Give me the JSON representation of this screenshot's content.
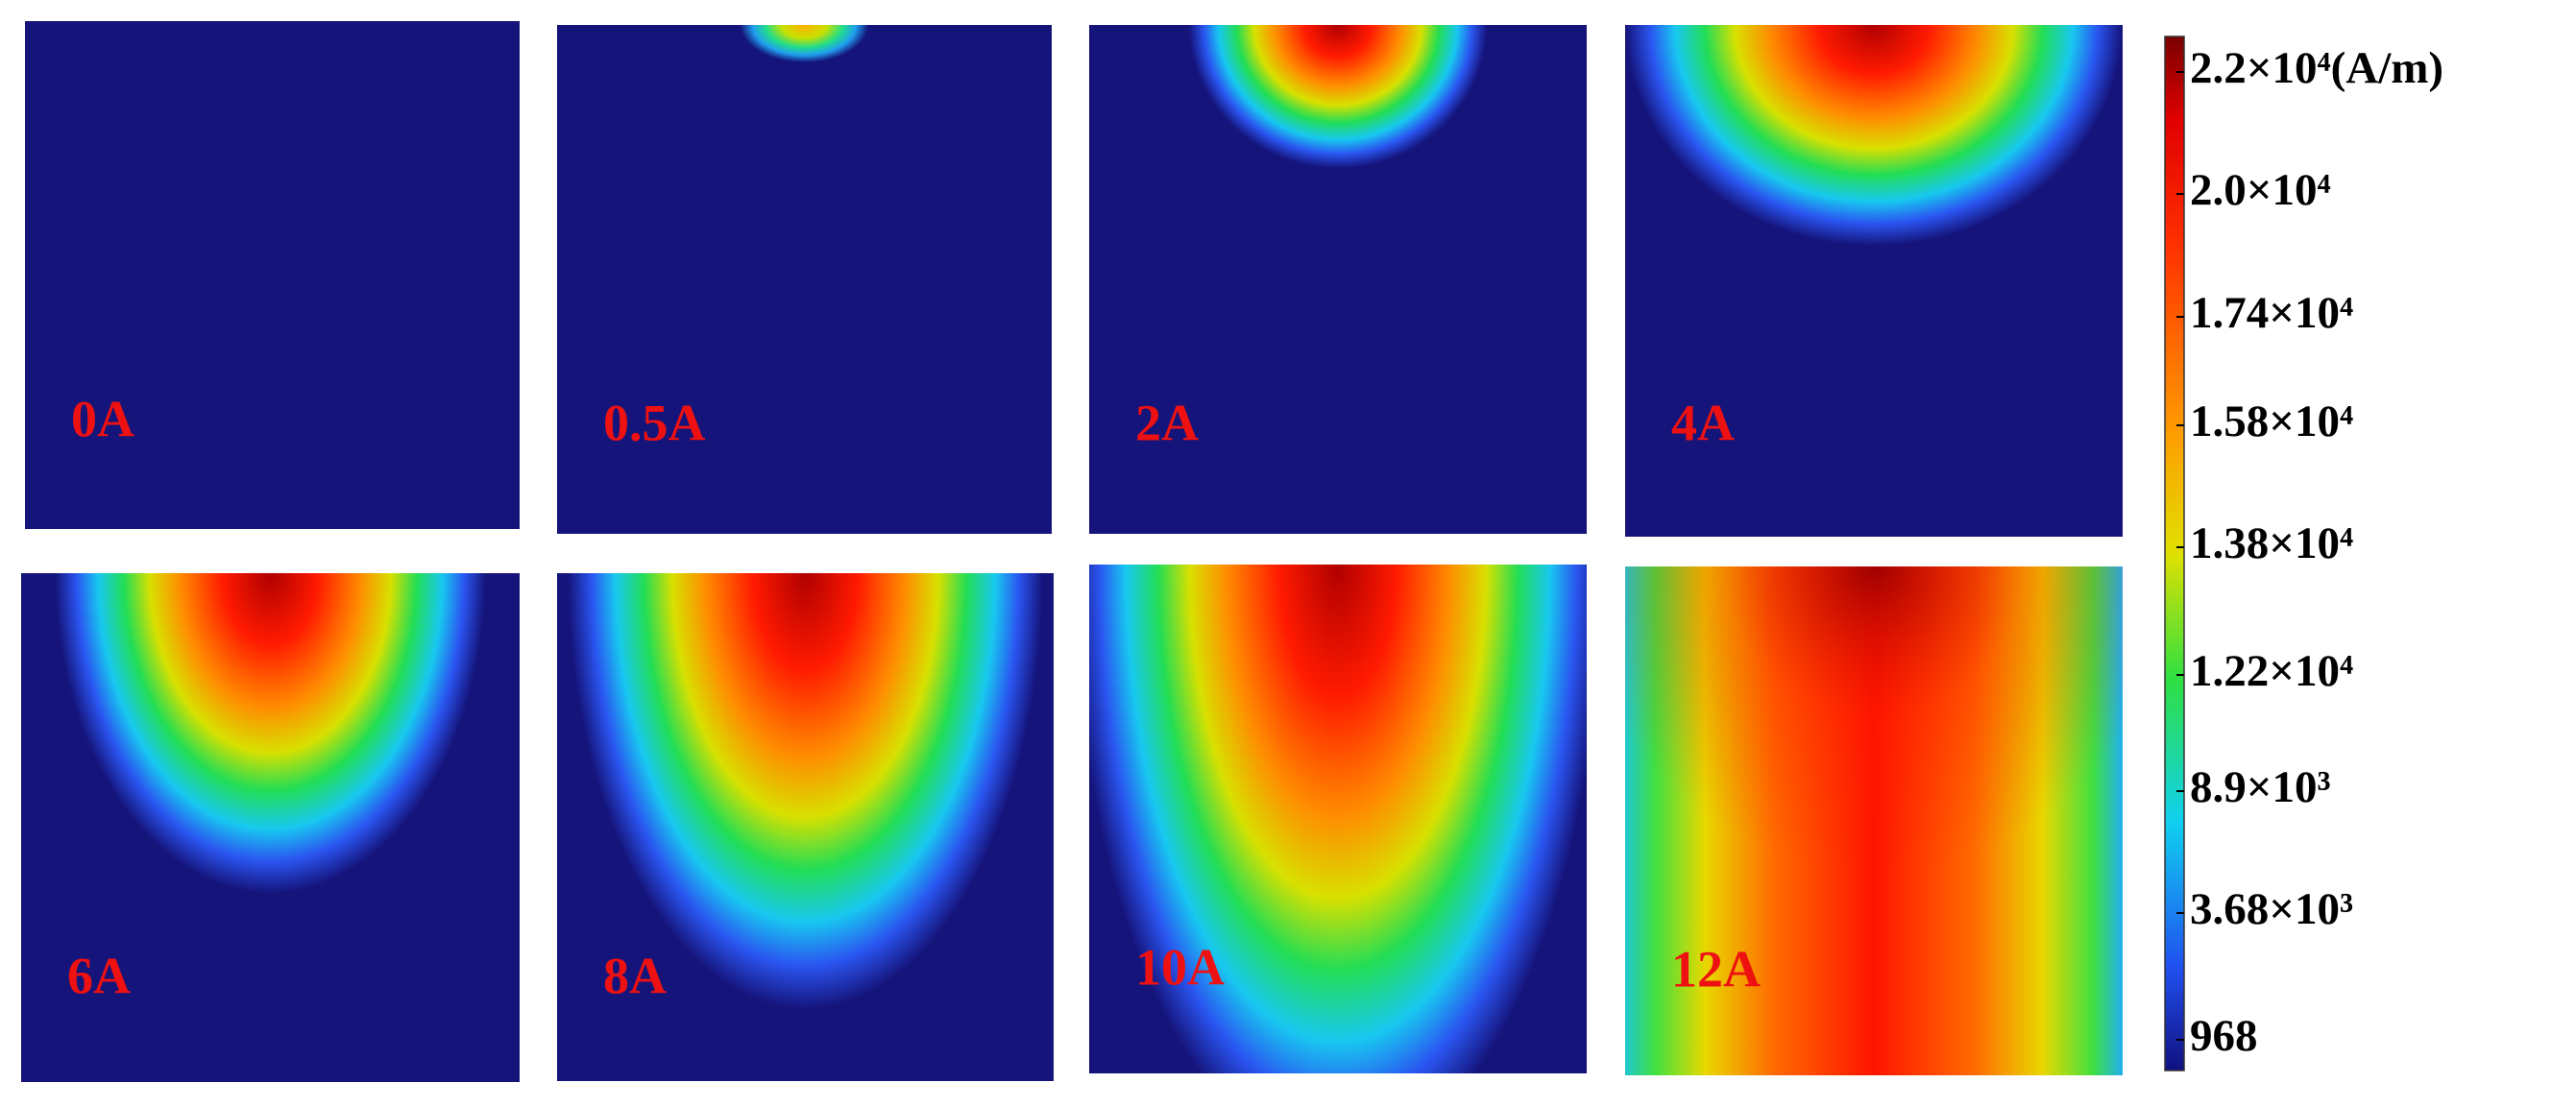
{
  "panels": [
    {
      "label": "0A"
    },
    {
      "label": "0.5A"
    },
    {
      "label": "2A"
    },
    {
      "label": "4A"
    },
    {
      "label": "6A"
    },
    {
      "label": "8A"
    },
    {
      "label": "10A"
    },
    {
      "label": "12A"
    }
  ],
  "colorbar": {
    "labels": [
      "2.2×10⁴(A/m)",
      "2.0×10⁴",
      "1.74×10⁴",
      "1.58×10⁴",
      "1.38×10⁴",
      "1.22×10⁴",
      "8.9×10³",
      "3.68×10³",
      "968"
    ]
  }
}
